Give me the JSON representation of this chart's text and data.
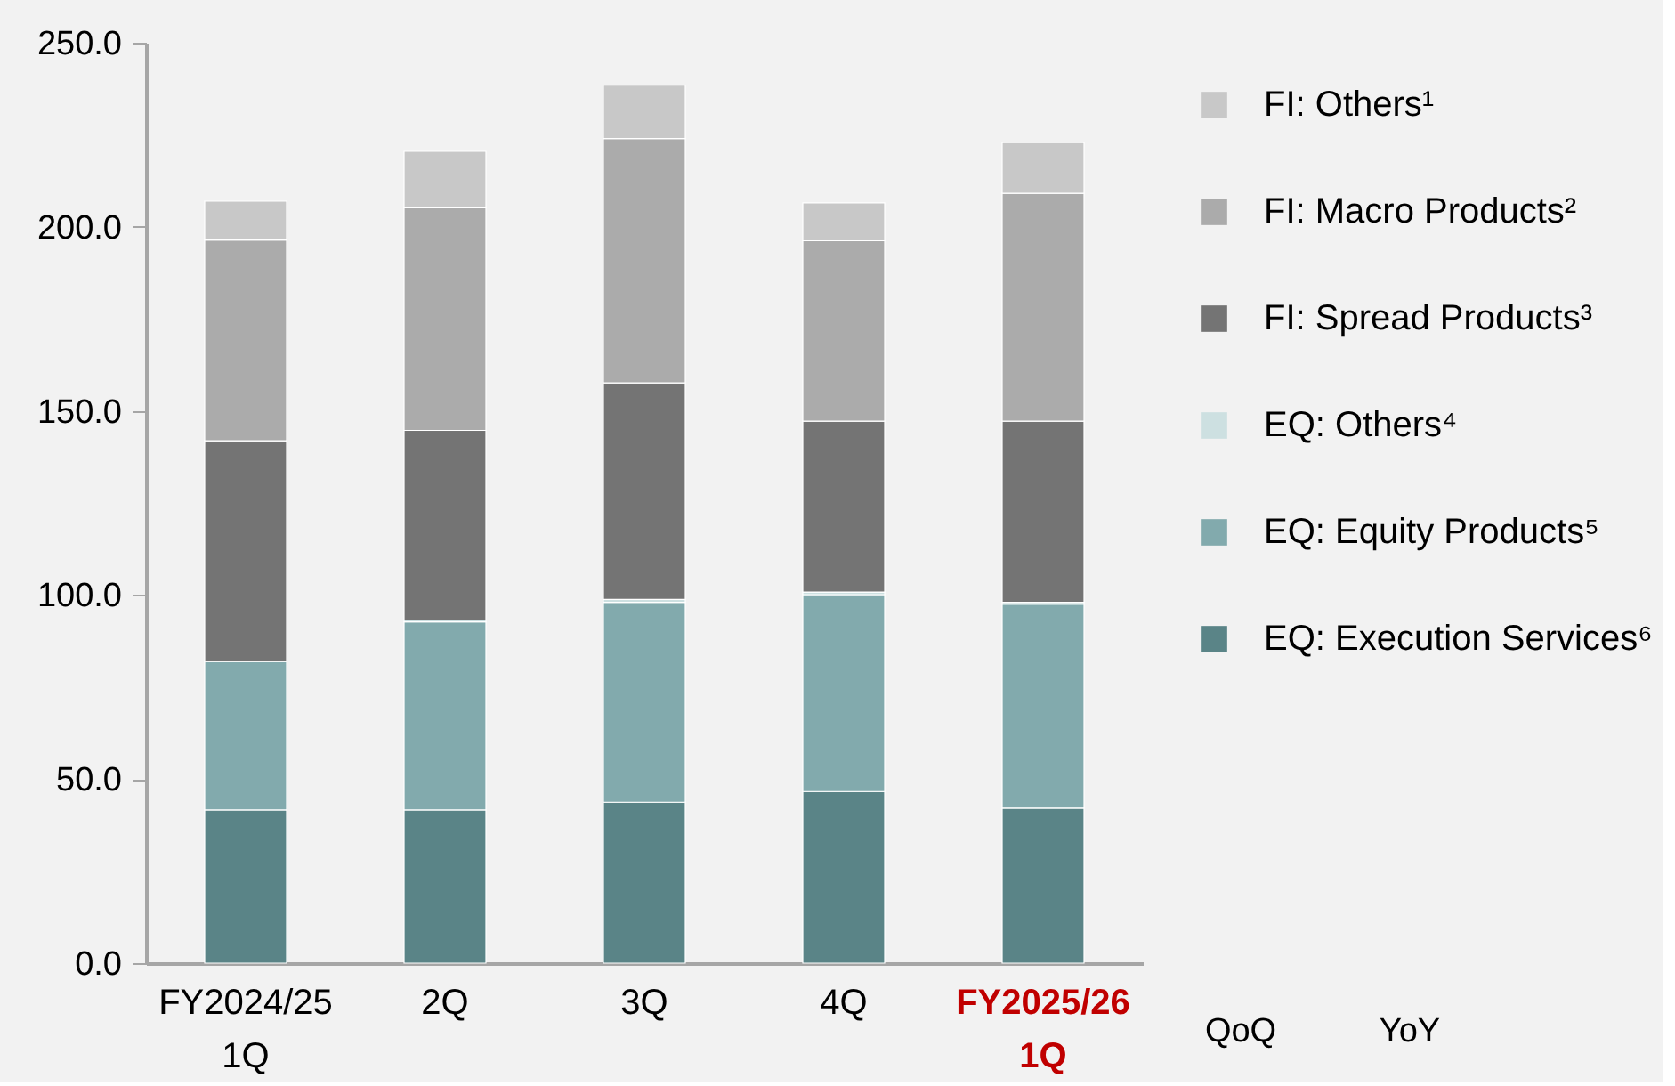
{
  "chart_data": {
    "type": "bar",
    "stacked": true,
    "categories": [
      "FY2024/25 1Q",
      "2Q",
      "3Q",
      "4Q",
      "FY2025/26 1Q"
    ],
    "series": [
      {
        "name": "EQ: Execution Services⁶",
        "color": "#5a8487",
        "values": [
          41.6,
          41.6,
          43.7,
          46.6,
          42.1
        ]
      },
      {
        "name": "EQ: Equity Products⁵",
        "color": "#82aaad",
        "values": [
          40.3,
          51.1,
          54.3,
          53.5,
          55.4
        ]
      },
      {
        "name": "EQ: Others⁴",
        "color": "#cde0e1",
        "values": [
          null,
          0.5,
          0.8,
          0.7,
          0.5
        ]
      },
      {
        "name": "FI: Spread Products³",
        "color": "#747474",
        "values": [
          60.0,
          51.5,
          58.8,
          46.4,
          49.2
        ]
      },
      {
        "name": "FI: Macro Products²",
        "color": "#ababab",
        "values": [
          54.5,
          60.5,
          66.4,
          49.0,
          61.9
        ]
      },
      {
        "name": "FI: Others¹",
        "color": "#c8c8c8",
        "values": [
          10.6,
          15.3,
          14.5,
          10.3,
          13.8
        ]
      }
    ],
    "ylim": [
      0,
      250
    ],
    "yticks": [
      {
        "value": 0,
        "label": "0.0"
      },
      {
        "value": 50,
        "label": "50.0"
      },
      {
        "value": 100,
        "label": "100.0"
      },
      {
        "value": 150,
        "label": "150.0"
      },
      {
        "value": 200,
        "label": "200.0"
      },
      {
        "value": 250,
        "label": "250.0"
      }
    ],
    "grid": false,
    "legend": "right",
    "annotations": [
      "QoQ",
      "YoY"
    ]
  }
}
